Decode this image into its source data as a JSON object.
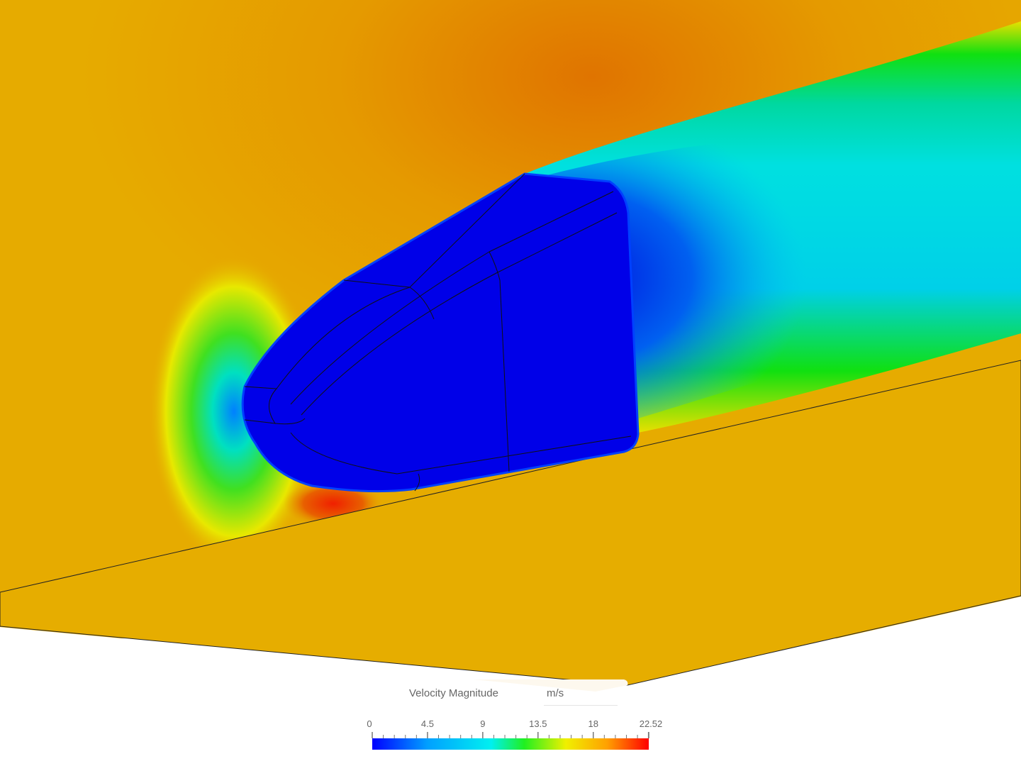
{
  "legend": {
    "title": "Velocity Magnitude",
    "unit": "m/s",
    "min": 0,
    "max": 22.52,
    "tick_labels": [
      "0",
      "4.5",
      "9",
      "13.5",
      "18",
      "22.52"
    ],
    "tick_values": [
      0,
      4.5,
      9,
      13.5,
      18,
      22.52
    ],
    "colormap": [
      "#0000ff",
      "#00a0ff",
      "#00f0f0",
      "#20f020",
      "#f0f000",
      "#ffa000",
      "#ff0000"
    ]
  },
  "colors": {
    "body": "#0000e8",
    "ground": "#e6ad00",
    "freestream": "#e6a800",
    "high_velocity": "#e07800"
  }
}
